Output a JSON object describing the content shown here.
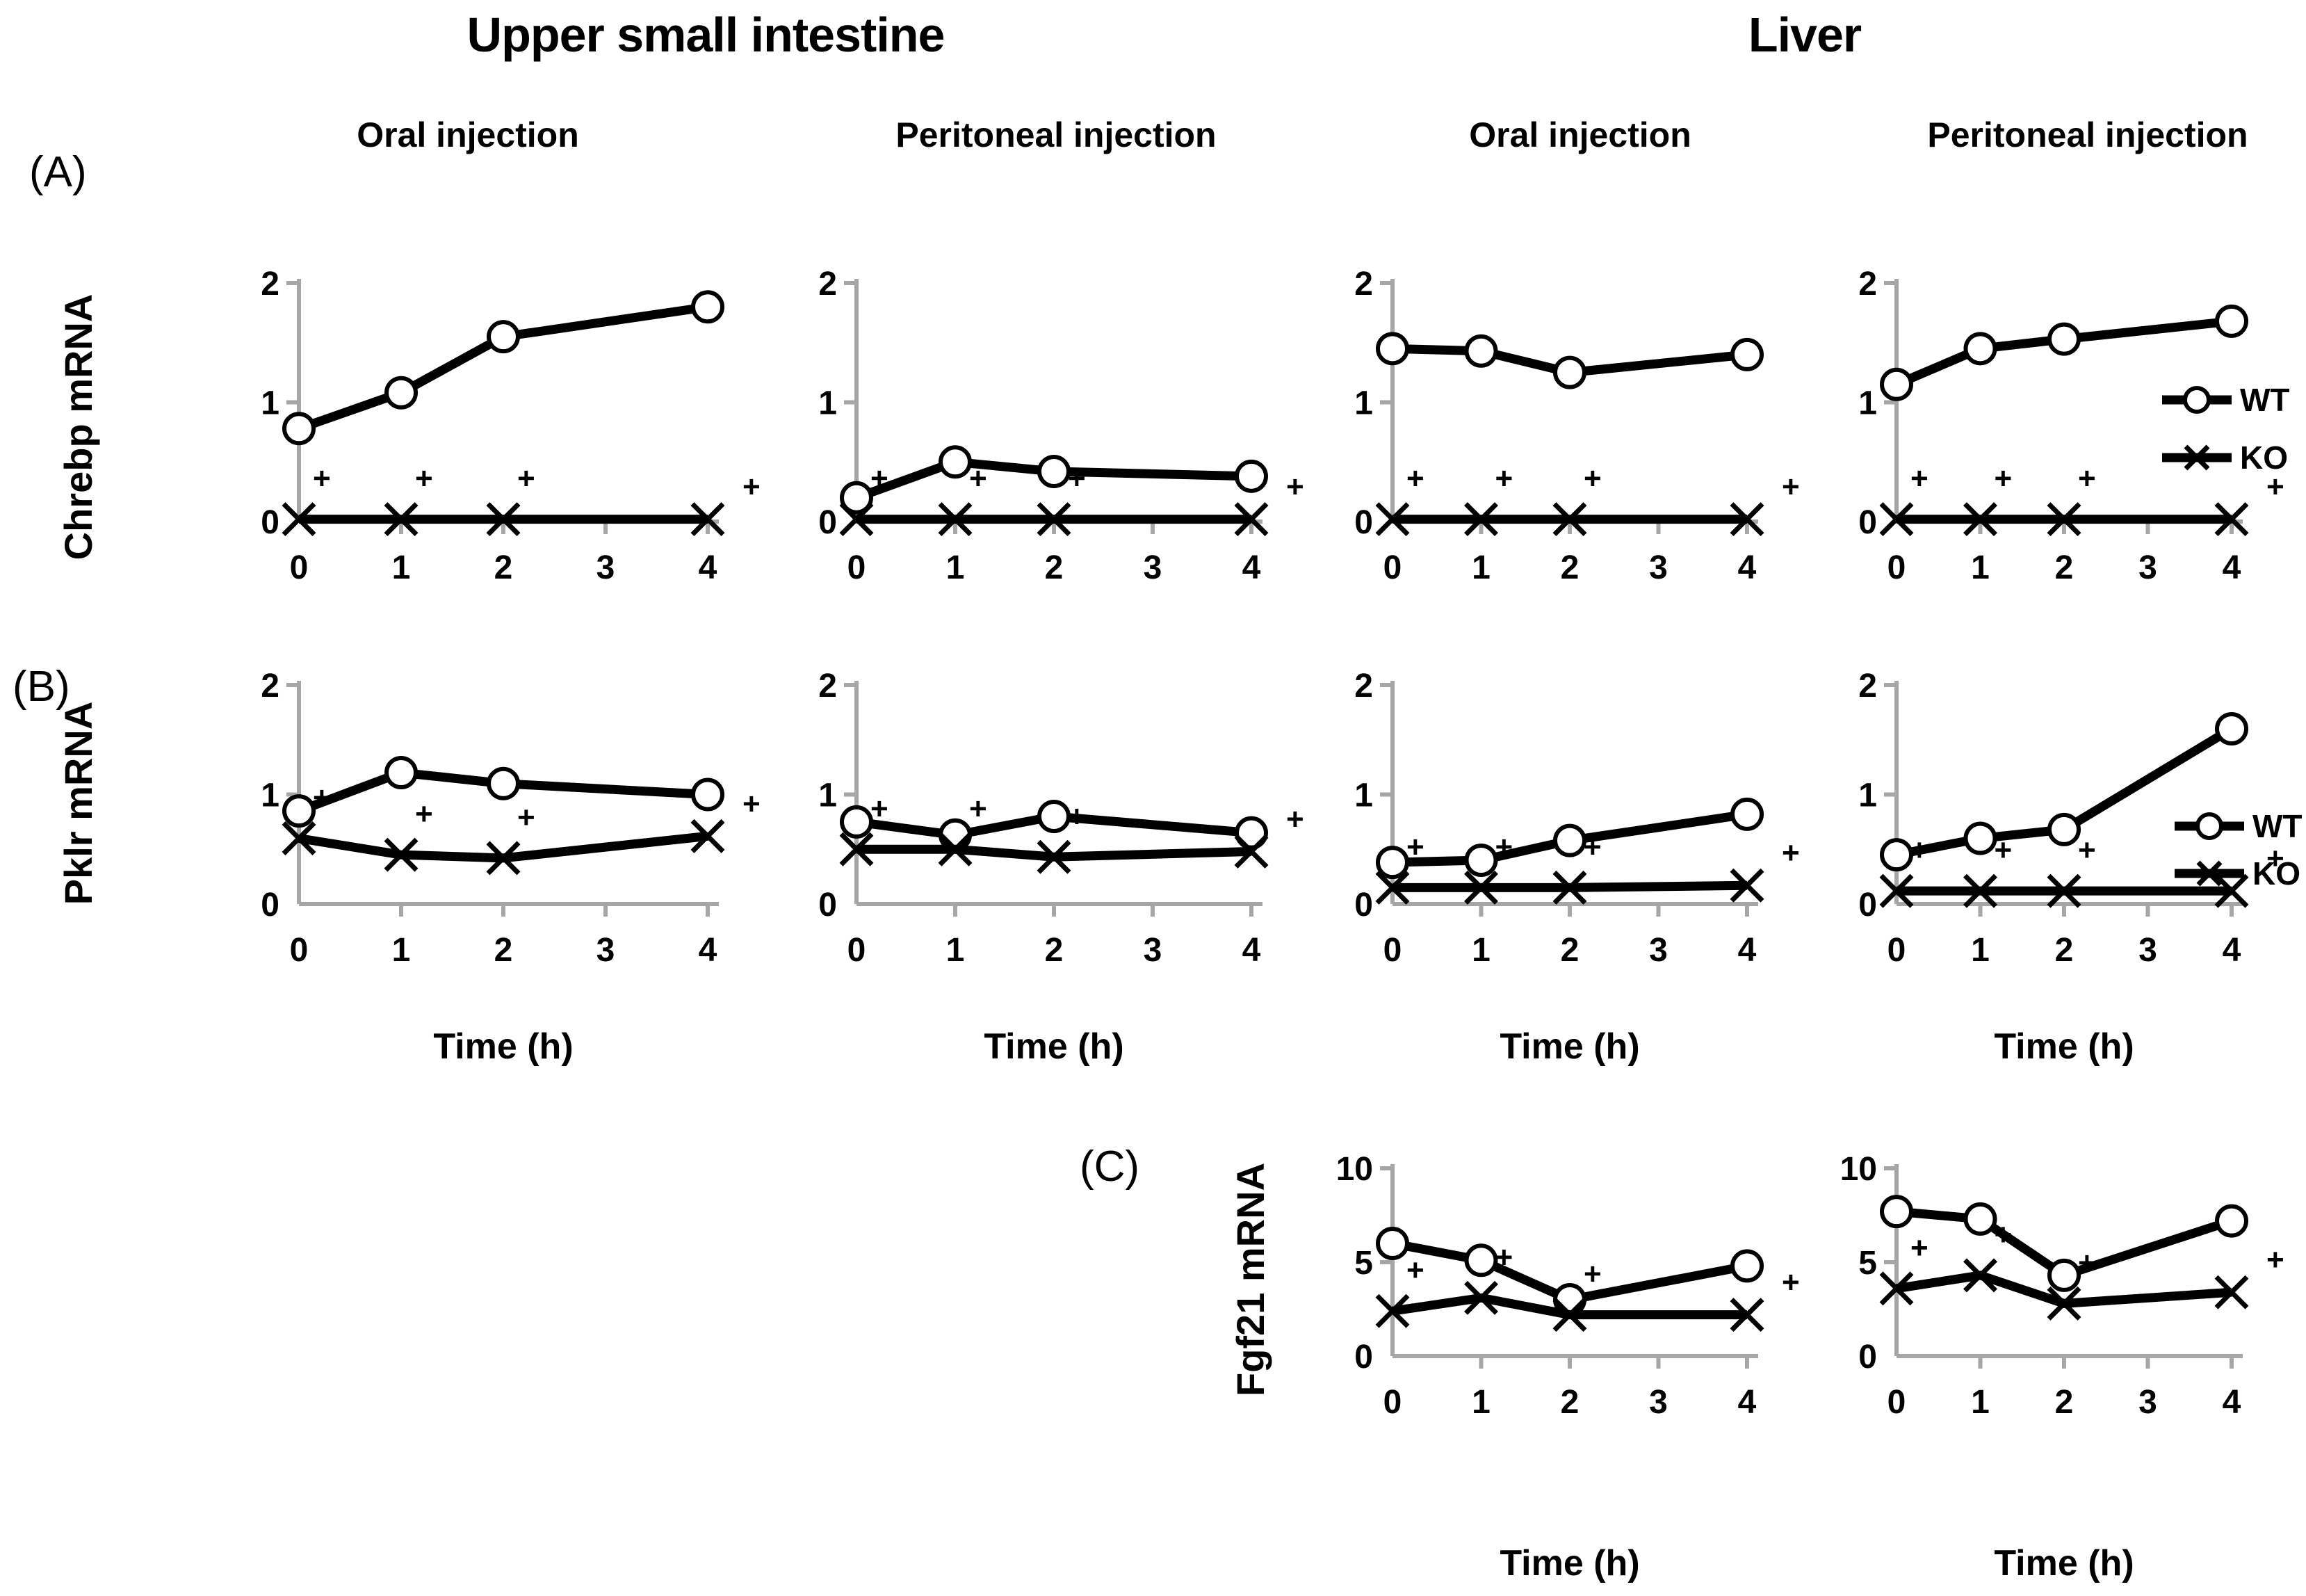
{
  "figure": {
    "group_titles": [
      {
        "label": "Upper small intestine"
      },
      {
        "label": "Liver"
      }
    ],
    "column_headers": [
      "Oral injection",
      "Peritoneal injection",
      "Oral injection",
      "Peritoneal injection"
    ],
    "panel_labels": {
      "A": "(A)",
      "B": "(B)",
      "C": "(C)"
    }
  },
  "legend": {
    "wt": "WT",
    "ko": "KO"
  },
  "colors": {
    "line": "#000000",
    "axis": "#a6a6a6",
    "marker_fill": "#ffffff",
    "text": "#000000"
  },
  "sig_marker": "+",
  "chart_data": [
    {
      "id": "a1",
      "type": "line",
      "panel": "A",
      "region": "Upper small intestine",
      "injection": "Oral injection",
      "ylabel": "Chrebp mRNA",
      "xlabel": null,
      "ylim": [
        0,
        2
      ],
      "yticks": [
        0,
        1,
        2
      ],
      "xticks": [
        0,
        1,
        2,
        3,
        4
      ],
      "x": [
        0,
        1,
        2,
        4
      ],
      "series": [
        {
          "name": "WT",
          "marker": "circle",
          "values": [
            0.78,
            1.08,
            1.55,
            1.8
          ]
        },
        {
          "name": "KO",
          "marker": "x",
          "values": [
            0.02,
            0.02,
            0.02,
            0.02
          ],
          "sig": [
            "+",
            "+",
            "+",
            "+"
          ]
        }
      ],
      "legend": false
    },
    {
      "id": "a2",
      "type": "line",
      "panel": "A",
      "region": "Upper small intestine",
      "injection": "Peritoneal injection",
      "ylabel": null,
      "xlabel": null,
      "ylim": [
        0,
        2
      ],
      "yticks": [
        0,
        1,
        2
      ],
      "xticks": [
        0,
        1,
        2,
        3,
        4
      ],
      "x": [
        0,
        1,
        2,
        4
      ],
      "series": [
        {
          "name": "WT",
          "marker": "circle",
          "values": [
            0.2,
            0.5,
            0.42,
            0.38
          ]
        },
        {
          "name": "KO",
          "marker": "x",
          "values": [
            0.02,
            0.02,
            0.02,
            0.02
          ],
          "sig": [
            "+",
            "+",
            "+",
            "+"
          ]
        }
      ],
      "legend": false
    },
    {
      "id": "a3",
      "type": "line",
      "panel": "A",
      "region": "Liver",
      "injection": "Oral injection",
      "ylabel": null,
      "xlabel": null,
      "ylim": [
        0,
        2
      ],
      "yticks": [
        0,
        1,
        2
      ],
      "xticks": [
        0,
        1,
        2,
        3,
        4
      ],
      "x": [
        0,
        1,
        2,
        4
      ],
      "series": [
        {
          "name": "WT",
          "marker": "circle",
          "values": [
            1.45,
            1.43,
            1.25,
            1.4
          ]
        },
        {
          "name": "KO",
          "marker": "x",
          "values": [
            0.02,
            0.02,
            0.02,
            0.02
          ],
          "sig": [
            "+",
            "+",
            "+",
            "+"
          ]
        }
      ],
      "legend": false
    },
    {
      "id": "a4",
      "type": "line",
      "panel": "A",
      "region": "Liver",
      "injection": "Peritoneal injection",
      "ylabel": null,
      "xlabel": null,
      "ylim": [
        0,
        2
      ],
      "yticks": [
        0,
        1,
        2
      ],
      "xticks": [
        0,
        1,
        2,
        3,
        4
      ],
      "x": [
        0,
        1,
        2,
        4
      ],
      "series": [
        {
          "name": "WT",
          "marker": "circle",
          "values": [
            1.15,
            1.45,
            1.53,
            1.68
          ]
        },
        {
          "name": "KO",
          "marker": "x",
          "values": [
            0.02,
            0.02,
            0.02,
            0.02
          ],
          "sig": [
            "+",
            "+",
            "+",
            "+"
          ]
        }
      ],
      "legend": true
    },
    {
      "id": "b1",
      "type": "line",
      "panel": "B",
      "region": "Upper small intestine",
      "injection": "Oral injection",
      "ylabel": "Pklr mRNA",
      "xlabel": "Time (h)",
      "ylim": [
        0,
        2
      ],
      "yticks": [
        0,
        1,
        2
      ],
      "xticks": [
        0,
        1,
        2,
        3,
        4
      ],
      "x": [
        0,
        1,
        2,
        4
      ],
      "series": [
        {
          "name": "WT",
          "marker": "circle",
          "values": [
            0.85,
            1.2,
            1.1,
            1.0
          ]
        },
        {
          "name": "KO",
          "marker": "x",
          "values": [
            0.6,
            0.45,
            0.42,
            0.62
          ],
          "sig": [
            "+",
            "+",
            "+",
            "+"
          ]
        }
      ],
      "legend": false
    },
    {
      "id": "b2",
      "type": "line",
      "panel": "B",
      "region": "Upper small intestine",
      "injection": "Peritoneal injection",
      "ylabel": null,
      "xlabel": "Time (h)",
      "ylim": [
        0,
        2
      ],
      "yticks": [
        0,
        1,
        2
      ],
      "xticks": [
        0,
        1,
        2,
        3,
        4
      ],
      "x": [
        0,
        1,
        2,
        4
      ],
      "series": [
        {
          "name": "WT",
          "marker": "circle",
          "values": [
            0.75,
            0.63,
            0.8,
            0.65
          ]
        },
        {
          "name": "KO",
          "marker": "x",
          "values": [
            0.5,
            0.5,
            0.43,
            0.48
          ],
          "sig": [
            "+",
            "+",
            "+",
            "+"
          ]
        }
      ],
      "legend": false
    },
    {
      "id": "b3",
      "type": "line",
      "panel": "B",
      "region": "Liver",
      "injection": "Oral injection",
      "ylabel": null,
      "xlabel": "Time (h)",
      "ylim": [
        0,
        2
      ],
      "yticks": [
        0,
        1,
        2
      ],
      "xticks": [
        0,
        1,
        2,
        3,
        4
      ],
      "x": [
        0,
        1,
        2,
        4
      ],
      "series": [
        {
          "name": "WT",
          "marker": "circle",
          "values": [
            0.38,
            0.4,
            0.58,
            0.82
          ]
        },
        {
          "name": "KO",
          "marker": "x",
          "values": [
            0.15,
            0.15,
            0.15,
            0.17
          ],
          "sig": [
            "+",
            "+",
            "+",
            "+"
          ]
        }
      ],
      "legend": false
    },
    {
      "id": "b4",
      "type": "line",
      "panel": "B",
      "region": "Liver",
      "injection": "Peritoneal injection",
      "ylabel": null,
      "xlabel": "Time (h)",
      "ylim": [
        0,
        2
      ],
      "yticks": [
        0,
        1,
        2
      ],
      "xticks": [
        0,
        1,
        2,
        3,
        4
      ],
      "x": [
        0,
        1,
        2,
        4
      ],
      "series": [
        {
          "name": "WT",
          "marker": "circle",
          "values": [
            0.45,
            0.6,
            0.68,
            1.6
          ]
        },
        {
          "name": "KO",
          "marker": "x",
          "values": [
            0.12,
            0.12,
            0.12,
            0.12
          ],
          "sig": [
            "+",
            "+",
            "+",
            "+"
          ]
        }
      ],
      "legend": true
    },
    {
      "id": "c1",
      "type": "line",
      "panel": "C",
      "region": "Liver",
      "injection": "Oral injection",
      "ylabel": "Fgf21 mRNA",
      "xlabel": "Time (h)",
      "ylim": [
        0,
        10
      ],
      "yticks": [
        0,
        5,
        10
      ],
      "xticks": [
        0,
        1,
        2,
        3,
        4
      ],
      "x": [
        0,
        1,
        2,
        4
      ],
      "series": [
        {
          "name": "WT",
          "marker": "circle",
          "values": [
            6.0,
            5.1,
            3.0,
            4.8
          ]
        },
        {
          "name": "KO",
          "marker": "x",
          "values": [
            2.4,
            3.1,
            2.2,
            2.2
          ],
          "sig": [
            "+",
            "+",
            "+",
            "+"
          ]
        }
      ],
      "legend": false
    },
    {
      "id": "c2",
      "type": "line",
      "panel": "C",
      "region": "Liver",
      "injection": "Peritoneal injection",
      "ylabel": null,
      "xlabel": "Time (h)",
      "ylim": [
        0,
        10
      ],
      "yticks": [
        0,
        5,
        10
      ],
      "xticks": [
        0,
        1,
        2,
        3,
        4
      ],
      "x": [
        0,
        1,
        2,
        4
      ],
      "series": [
        {
          "name": "WT",
          "marker": "circle",
          "values": [
            7.7,
            7.3,
            4.3,
            7.2
          ]
        },
        {
          "name": "KO",
          "marker": "x",
          "values": [
            3.6,
            4.3,
            2.8,
            3.4
          ],
          "sig": [
            "+",
            "+",
            "+",
            "+"
          ]
        }
      ],
      "legend": false
    }
  ]
}
